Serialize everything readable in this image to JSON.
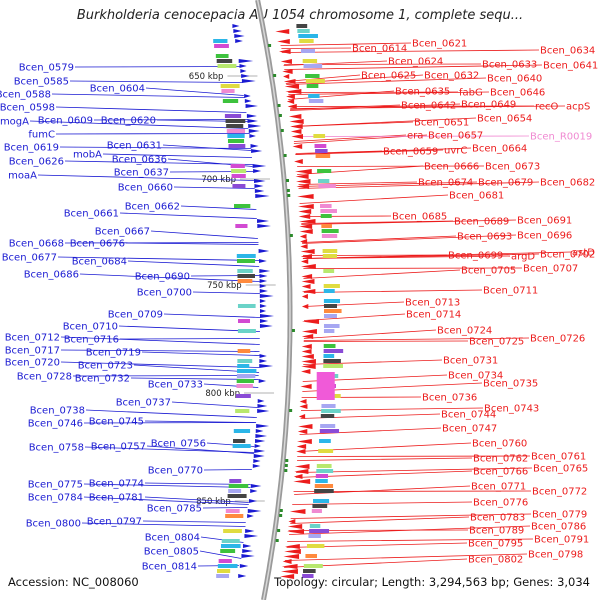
{
  "title": "Burkholderia cenocepacia AU 1054 chromosome 1, complete sequ...",
  "footer": {
    "accession_label": "Accession:",
    "accession": "NC_008060",
    "topology_label": "Topology:",
    "topology": "circular",
    "length_label": "Length:",
    "length": "3,294,563 bp",
    "genes_label": "Genes:",
    "genes": "3,034"
  },
  "colors": {
    "forward": "#1a1ad2",
    "reverse": "#ec1c1c",
    "rrna_pink": "#f08ad2",
    "backbone": "#888888"
  },
  "scale_ticks": [
    {
      "label": "650 kbp",
      "kbp": 650
    },
    {
      "label": "700 kbp",
      "kbp": 700
    },
    {
      "label": "750 kbp",
      "kbp": 750
    },
    {
      "label": "800 kbp",
      "kbp": 800
    },
    {
      "label": "850 kbp",
      "kbp": 850
    }
  ],
  "left_genes": [
    "Bcen_0579",
    "Bcen_0585",
    "Bcen_0588",
    "Bcen_0598",
    "mogA",
    "fumC",
    "Bcen_0619",
    "Bcen_0626",
    "moaA",
    "Bcen_0604",
    "Bcen_0609",
    "Bcen_0620",
    "mobA",
    "Bcen_0631",
    "Bcen_0636",
    "Bcen_0637",
    "Bcen_0660",
    "Bcen_0662",
    "Bcen_0661",
    "Bcen_0667",
    "Bcen_0668",
    "Bcen_0676",
    "Bcen_0677",
    "Bcen_0684",
    "Bcen_0686",
    "Bcen_0690",
    "Bcen_0700",
    "Bcen_0709",
    "Bcen_0710",
    "Bcen_0712",
    "Bcen_0716",
    "Bcen_0717",
    "Bcen_0719",
    "Bcen_0720",
    "Bcen_0723",
    "Bcen_0728",
    "Bcen_0732",
    "Bcen_0733",
    "Bcen_0737",
    "Bcen_0738",
    "Bcen_0746",
    "Bcen_0745",
    "Bcen_0756",
    "Bcen_0758",
    "Bcen_0757",
    "Bcen_0770",
    "Bcen_0774",
    "Bcen_0775",
    "Bcen_0781",
    "Bcen_0784",
    "Bcen_0785",
    "Bcen_0797",
    "Bcen_0800",
    "Bcen_0804",
    "Bcen_0805",
    "Bcen_0814"
  ],
  "right_genes": [
    "Bcen_0614",
    "Bcen_0621",
    "Bcen_0624",
    "Bcen_0625",
    "Bcen_0632",
    "Bcen_0633",
    "Bcen_0634",
    "Bcen_0641",
    "Bcen_0640",
    "Bcen_0635",
    "fabG",
    "Bcen_0646",
    "Bcen_0642",
    "Bcen_0649",
    "Bcen_0654",
    "recO",
    "acpS",
    "Bcen_0651",
    "era",
    "Bcen_0657",
    "Bcen_R0019",
    "Bcen_0659",
    "uvrC",
    "Bcen_0664",
    "Bcen_0666",
    "Bcen_0673",
    "Bcen_0674",
    "Bcen_0679",
    "Bcen_0682",
    "Bcen_0681",
    "Bcen_0685",
    "Bcen_0689",
    "Bcen_0691",
    "Bcen_0693",
    "Bcen_0696",
    "Bcen_0699",
    "argD",
    "Bcen_0702",
    "astD",
    "Bcen_0705",
    "Bcen_0707",
    "Bcen_0711",
    "Bcen_0713",
    "Bcen_0714",
    "Bcen_0724",
    "Bcen_0725",
    "Bcen_0726",
    "Bcen_0731",
    "Bcen_0734",
    "Bcen_0735",
    "Bcen_0736",
    "Bcen_0743",
    "Bcen_0744",
    "Bcen_0747",
    "Bcen_0760",
    "Bcen_0761",
    "Bcen_0762",
    "Bcen_0765",
    "Bcen_0766",
    "Bcen_0771",
    "Bcen_0772",
    "Bcen_0776",
    "Bcen_0779",
    "Bcen_0783",
    "Bcen_0786",
    "Bcen_0789",
    "Bcen_0791",
    "Bcen_0795",
    "Bcen_0798",
    "Bcen_0802"
  ]
}
